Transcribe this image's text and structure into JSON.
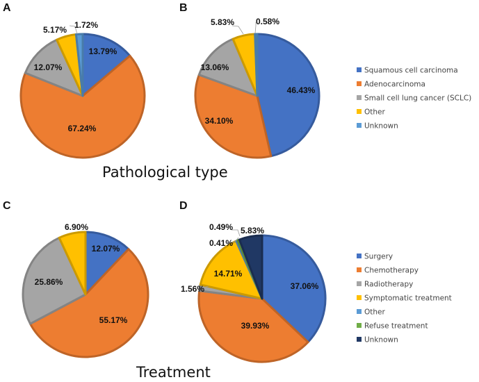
{
  "section_titles": {
    "pathological": "Pathological type",
    "treatment": "Treatment"
  },
  "legends": {
    "pathological": [
      {
        "label": "Squamous cell carcinoma",
        "color": "#4472C4"
      },
      {
        "label": "Adenocarcinoma",
        "color": "#ED7D31"
      },
      {
        "label": "Small cell lung cancer (SCLC)",
        "color": "#A5A5A5"
      },
      {
        "label": "Other",
        "color": "#FFC000"
      },
      {
        "label": "Unknown",
        "color": "#5B9BD5"
      }
    ],
    "treatment": [
      {
        "label": "Surgery",
        "color": "#4472C4"
      },
      {
        "label": "Chemotherapy",
        "color": "#ED7D31"
      },
      {
        "label": "Radiotherapy",
        "color": "#A5A5A5"
      },
      {
        "label": "Symptomatic treatment",
        "color": "#FFC000"
      },
      {
        "label": "Other",
        "color": "#5B9BD5"
      },
      {
        "label": "Refuse treatment",
        "color": "#70AD47"
      },
      {
        "label": "Unknown",
        "color": "#203864"
      }
    ]
  },
  "chart_data": [
    {
      "type": "pie",
      "panel": "A",
      "group": "Pathological type",
      "categories": [
        "Squamous cell carcinoma",
        "Adenocarcinoma",
        "Small cell lung cancer (SCLC)",
        "Other",
        "Unknown"
      ],
      "values": [
        13.79,
        67.24,
        12.07,
        5.17,
        1.72
      ],
      "labels": [
        "13.79%",
        "67.24%",
        "12.07%",
        "5.17%",
        "1.72%"
      ],
      "colors": [
        "#4472C4",
        "#ED7D31",
        "#A5A5A5",
        "#FFC000",
        "#5B9BD5"
      ]
    },
    {
      "type": "pie",
      "panel": "B",
      "group": "Pathological type",
      "categories": [
        "Squamous cell carcinoma",
        "Adenocarcinoma",
        "Small cell lung cancer (SCLC)",
        "Other",
        "Unknown"
      ],
      "values": [
        46.43,
        34.1,
        13.06,
        5.83,
        0.58
      ],
      "labels": [
        "46.43%",
        "34.10%",
        "13.06%",
        "5.83%",
        "0.58%"
      ],
      "colors": [
        "#4472C4",
        "#ED7D31",
        "#A5A5A5",
        "#FFC000",
        "#5B9BD5"
      ]
    },
    {
      "type": "pie",
      "panel": "C",
      "group": "Treatment",
      "categories": [
        "Surgery",
        "Chemotherapy",
        "Radiotherapy",
        "Symptomatic treatment"
      ],
      "values": [
        12.07,
        55.17,
        25.86,
        6.9
      ],
      "labels": [
        "12.07%",
        "55.17%",
        "25.86%",
        "6.90%"
      ],
      "colors": [
        "#4472C4",
        "#ED7D31",
        "#A5A5A5",
        "#FFC000"
      ]
    },
    {
      "type": "pie",
      "panel": "D",
      "group": "Treatment",
      "categories": [
        "Surgery",
        "Chemotherapy",
        "Radiotherapy",
        "Symptomatic treatment",
        "Other",
        "Refuse treatment",
        "Unknown"
      ],
      "values": [
        37.06,
        39.93,
        1.56,
        14.71,
        0.41,
        0.49,
        5.83
      ],
      "labels": [
        "37.06%",
        "39.93%",
        "1.56%",
        "14.71%",
        "0.41%",
        "0.49%",
        "5.83%"
      ],
      "colors": [
        "#4472C4",
        "#ED7D31",
        "#A5A5A5",
        "#FFC000",
        "#5B9BD5",
        "#70AD47",
        "#203864"
      ]
    }
  ]
}
